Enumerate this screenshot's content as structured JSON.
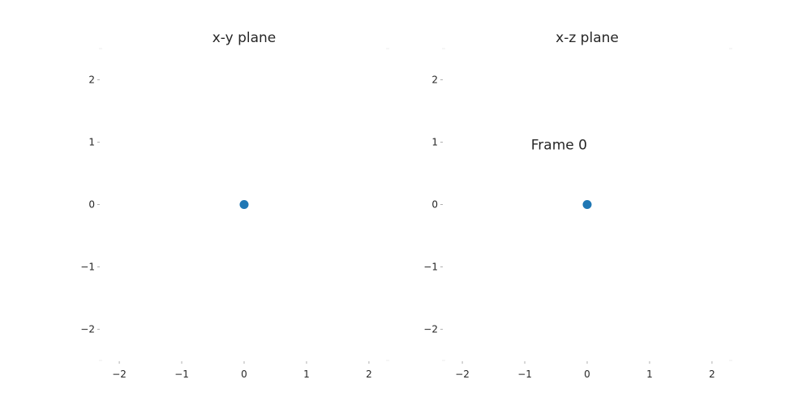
{
  "chart_data": [
    {
      "type": "scatter",
      "title": "x-y plane",
      "xlabel": "",
      "ylabel": "",
      "xlim": [
        -2.3,
        2.3
      ],
      "ylim": [
        -2.5,
        2.5
      ],
      "xticks": [
        -2,
        -1,
        0,
        1,
        2
      ],
      "yticks": [
        -2,
        -1,
        0,
        1,
        2
      ],
      "xtick_labels": [
        "−2",
        "−1",
        "0",
        "1",
        "2"
      ],
      "ytick_labels": [
        "−2",
        "−1",
        "0",
        "1",
        "2"
      ],
      "grid": false,
      "points": [
        {
          "x": 0,
          "y": 0
        }
      ],
      "marker_color": "#1f77b4"
    },
    {
      "type": "scatter",
      "title": "x-z plane",
      "xlabel": "",
      "ylabel": "",
      "xlim": [
        -2.3,
        2.3
      ],
      "ylim": [
        -2.5,
        2.5
      ],
      "xticks": [
        -2,
        -1,
        0,
        1,
        2
      ],
      "yticks": [
        -2,
        -1,
        0,
        1,
        2
      ],
      "xtick_labels": [
        "−2",
        "−1",
        "0",
        "1",
        "2"
      ],
      "ytick_labels": [
        "−2",
        "−1",
        "0",
        "1",
        "2"
      ],
      "grid": false,
      "points": [
        {
          "x": 0,
          "y": 0
        }
      ],
      "marker_color": "#1f77b4"
    }
  ],
  "annotation": {
    "text": "Frame 0",
    "x": -0.45,
    "y": 0.88
  }
}
